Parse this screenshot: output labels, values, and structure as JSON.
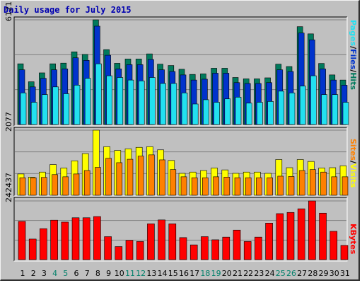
{
  "title": "Daily usage for July 2015",
  "colors": {
    "title": "#0000b0",
    "panel_bg": "#c0c0c0",
    "grid": "#808080",
    "hits": "#007a5c",
    "files": "#0033cc",
    "pages": "#22e0f0",
    "visits": "#ffff00",
    "sites": "#ff8000",
    "kbytes": "#ff0000",
    "weekend_day": "#00806a",
    "weekday": "#000000"
  },
  "chart_data": [
    {
      "type": "bar",
      "title": "Daily usage for July 2015",
      "max_label": "6121",
      "ymax": 6121,
      "legend": [
        "Pages",
        "Files",
        "Hits"
      ],
      "legend_separator": "/",
      "series": [
        {
          "name": "Hits",
          "values": [
            3550,
            2500,
            3020,
            3550,
            3590,
            4250,
            4100,
            6121,
            4380,
            3580,
            3830,
            3830,
            4130,
            3530,
            3450,
            3230,
            2930,
            2960,
            3290,
            3290,
            2750,
            2670,
            2670,
            2730,
            3530,
            3390,
            5720,
            5300,
            3570,
            2900,
            2600
          ]
        },
        {
          "name": "Files",
          "values": [
            3200,
            2200,
            2700,
            3200,
            3250,
            3900,
            3750,
            5750,
            4050,
            3250,
            3500,
            3500,
            3800,
            3200,
            3100,
            2900,
            2600,
            2650,
            3000,
            3000,
            2450,
            2400,
            2400,
            2450,
            3200,
            3100,
            5350,
            4950,
            3250,
            2600,
            2300
          ]
        },
        {
          "name": "Pages",
          "values": [
            1850,
            1300,
            1750,
            2200,
            1800,
            2300,
            2700,
            3550,
            2850,
            2750,
            2600,
            2550,
            2750,
            2400,
            2400,
            1850,
            1200,
            1450,
            1300,
            1500,
            1600,
            1250,
            1300,
            1350,
            1950,
            1850,
            2250,
            2850,
            1750,
            1750,
            1300
          ]
        }
      ],
      "xlabels": [
        "1",
        "2",
        "3",
        "4",
        "5",
        "6",
        "7",
        "8",
        "9",
        "10",
        "11",
        "12",
        "13",
        "14",
        "15",
        "16",
        "17",
        "18",
        "19",
        "20",
        "21",
        "22",
        "23",
        "24",
        "25",
        "26",
        "27",
        "28",
        "29",
        "30",
        "31"
      ],
      "weekend": [
        4,
        5,
        11,
        12,
        18,
        19,
        25,
        26
      ]
    },
    {
      "type": "bar",
      "max_label": "2077",
      "ymax": 2077,
      "legend": [
        "Sites",
        "Visits"
      ],
      "legend_separator": "/",
      "series": [
        {
          "name": "Visits",
          "values": [
            680,
            580,
            740,
            980,
            870,
            1100,
            1330,
            2077,
            1550,
            1430,
            1480,
            1530,
            1550,
            1450,
            1110,
            700,
            740,
            790,
            870,
            810,
            700,
            740,
            740,
            700,
            1140,
            880,
            1140,
            1080,
            870,
            880,
            940
          ]
        },
        {
          "name": "Sites",
          "values": [
            560,
            560,
            570,
            660,
            590,
            680,
            790,
            890,
            1180,
            1040,
            1150,
            1250,
            1290,
            1130,
            820,
            590,
            560,
            560,
            590,
            580,
            560,
            560,
            560,
            560,
            610,
            600,
            790,
            820,
            740,
            590,
            590
          ]
        }
      ]
    },
    {
      "type": "bar",
      "max_label": "242437",
      "ymax": 242437,
      "legend": [
        "KBytes"
      ],
      "series": [
        {
          "name": "KBytes",
          "values": [
            158000,
            85000,
            128000,
            163000,
            155000,
            173000,
            173000,
            178000,
            95000,
            54000,
            80000,
            75000,
            148000,
            164000,
            148000,
            91000,
            61000,
            95000,
            82000,
            93000,
            122000,
            75000,
            93000,
            151000,
            190000,
            195000,
            210000,
            242437,
            192000,
            117000,
            59000
          ]
        }
      ]
    }
  ]
}
